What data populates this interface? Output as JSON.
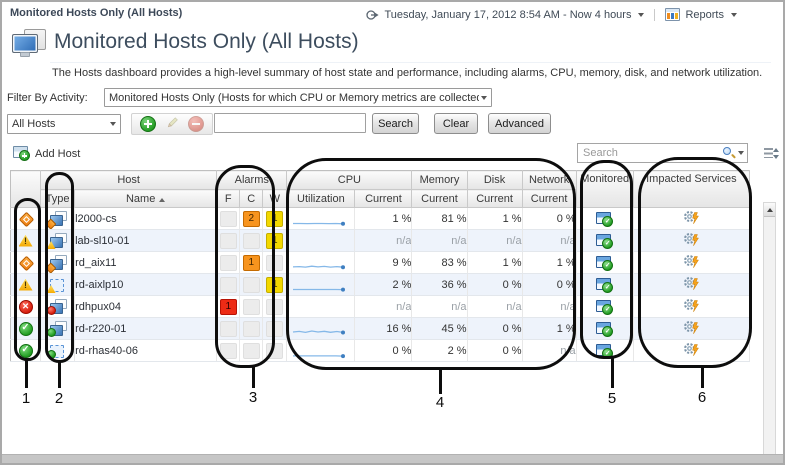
{
  "breadcrumb": "Monitored Hosts Only (All Hosts)",
  "topbar": {
    "time_range": "Tuesday, January 17, 2012 8:54 AM - Now 4 hours",
    "reports_label": "Reports"
  },
  "page": {
    "title": "Monitored Hosts Only (All Hosts)",
    "description": "The Hosts dashboard provides a high-level summary of host state and performance, including alarms, CPU, memory, disk, and network utilization."
  },
  "filter": {
    "label": "Filter By Activity:",
    "value": "Monitored Hosts Only (Hosts for which CPU or Memory metrics are collected)"
  },
  "actions": {
    "scope_value": "All Hosts",
    "search_value": "",
    "search_button": "Search",
    "clear_button": "Clear",
    "advanced_button": "Advanced"
  },
  "grid_toolbar": {
    "add_host_label": "Add Host",
    "search_placeholder": "Search"
  },
  "table": {
    "groups": [
      "Host",
      "Alarms",
      "CPU",
      "Memory",
      "Disk",
      "Network",
      "Monitored",
      "Impacted Services"
    ],
    "sub": {
      "type": "Type",
      "name": "Name",
      "f": "F",
      "c": "C",
      "w": "W",
      "utilization": "Utilization",
      "current": "Current"
    },
    "rows": [
      {
        "name": "l2000-cs",
        "status": "critical",
        "host_type": "physical",
        "type_badge": "critical",
        "alarm_f": "",
        "alarm_c": "2",
        "alarm_w": "1",
        "spark": [
          70,
          70,
          71,
          70,
          70,
          71,
          70,
          72
        ],
        "cpu": "1 %",
        "memory": "81 %",
        "disk": "1 %",
        "network": "0 %"
      },
      {
        "name": "lab-sl10-01",
        "status": "warning",
        "host_type": "physical",
        "type_badge": "warning",
        "alarm_f": "",
        "alarm_c": "",
        "alarm_w": "1",
        "spark": null,
        "cpu": "n/a",
        "memory": "n/a",
        "disk": "n/a",
        "network": "n/a"
      },
      {
        "name": "rd_aix11",
        "status": "critical",
        "host_type": "physical",
        "type_badge": "critical",
        "alarm_f": "",
        "alarm_c": "1",
        "alarm_w": "",
        "spark": [
          66,
          64,
          67,
          61,
          66,
          63,
          67,
          64,
          68
        ],
        "cpu": "9 %",
        "memory": "83 %",
        "disk": "1 %",
        "network": "1 %"
      },
      {
        "name": "rd-aixlp10",
        "status": "warning",
        "host_type": "virtual",
        "type_badge": "warning",
        "alarm_f": "",
        "alarm_c": "",
        "alarm_w": "1",
        "spark": [
          70,
          70,
          70,
          70,
          70,
          70,
          70,
          71
        ],
        "cpu": "2 %",
        "memory": "36 %",
        "disk": "0 %",
        "network": "0 %"
      },
      {
        "name": "rdhpux04",
        "status": "fatal",
        "host_type": "physical",
        "type_badge": "fatal",
        "alarm_f": "1",
        "alarm_c": "",
        "alarm_w": "",
        "spark": null,
        "cpu": "n/a",
        "memory": "n/a",
        "disk": "n/a",
        "network": "n/a"
      },
      {
        "name": "rd-r220-01",
        "status": "normal",
        "host_type": "physical",
        "type_badge": "normal",
        "alarm_f": "",
        "alarm_c": "",
        "alarm_w": "",
        "spark": [
          60,
          56,
          63,
          53,
          60,
          55,
          62,
          57,
          63
        ],
        "cpu": "16 %",
        "memory": "45 %",
        "disk": "0 %",
        "network": "1 %"
      },
      {
        "name": "rd-rhas40-06",
        "status": "normal",
        "host_type": "virtual",
        "type_badge": "normal",
        "alarm_f": "",
        "alarm_c": "",
        "alarm_w": "",
        "spark": [
          73,
          73,
          73,
          73,
          73,
          73,
          73,
          74
        ],
        "cpu": "0 %",
        "memory": "2 %",
        "disk": "0 %",
        "network": "n/a"
      }
    ]
  },
  "annotations": {
    "labels": [
      "1",
      "2",
      "3",
      "4",
      "5",
      "6"
    ]
  },
  "colors": {
    "alarm_fatal": "#ed2b15",
    "alarm_critical": "#f7941e",
    "alarm_warning": "#f2d800",
    "status_normal": "#2fa42f",
    "spark_line": "#85b8e8",
    "spark_dot": "#3f7fc1",
    "accent_blue": "#3a78c2"
  }
}
